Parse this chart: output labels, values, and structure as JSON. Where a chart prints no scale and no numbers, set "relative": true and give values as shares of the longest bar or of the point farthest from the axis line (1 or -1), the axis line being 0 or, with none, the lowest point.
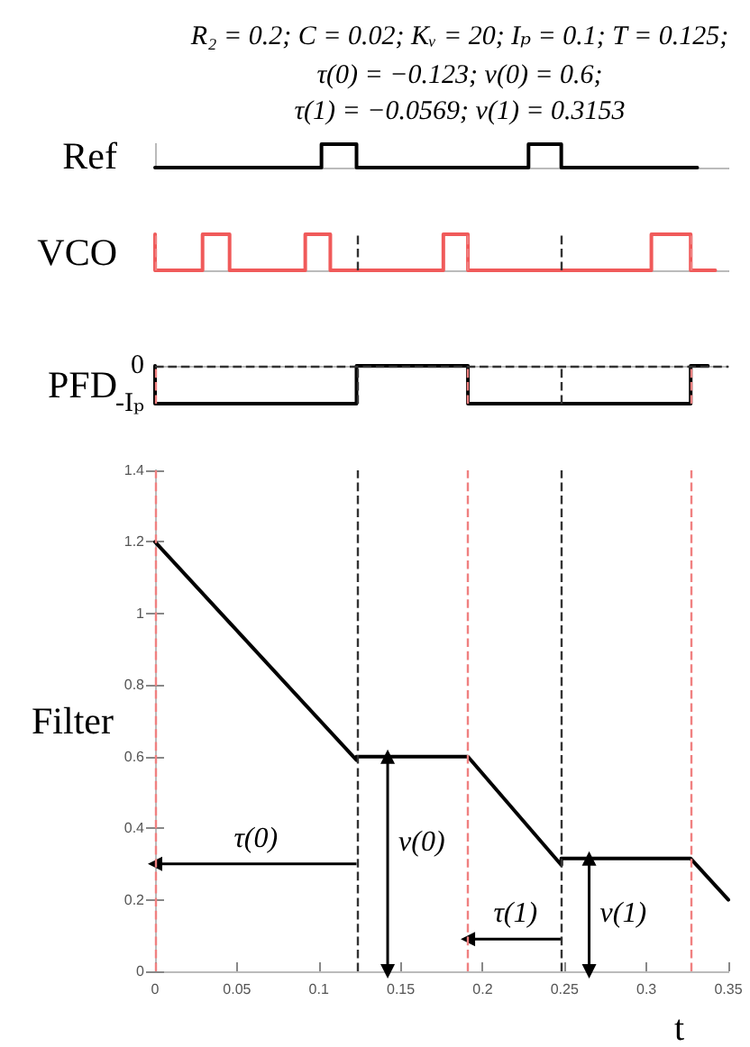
{
  "chart_data": [
    {
      "type": "step",
      "title": "R₂ = 0.2; C = 0.02; Kᵥ = 20; Iₚ = 0.1; T = 0.125;",
      "subtitle": "τ(0) = −0.123; v(0) = 0.6;\nτ(1) = −0.0569; v(1) = 0.3153",
      "ylabel": "Ref",
      "relative": true,
      "xlim": [
        0,
        0.35
      ],
      "x": [
        0,
        0.1016,
        0.123,
        0.228,
        0.248,
        0.331
      ],
      "values": [
        0,
        1,
        0,
        1,
        0,
        0
      ],
      "color": "#000000"
    },
    {
      "type": "step",
      "ylabel": "VCO",
      "relative": true,
      "xlim": [
        0,
        0.35
      ],
      "x": [
        0,
        0,
        0.029,
        0.0455,
        0.0917,
        0.107,
        0.176,
        0.191,
        0.303,
        0.327,
        0.342
      ],
      "values": [
        1,
        0,
        1,
        0,
        1,
        0,
        1,
        0,
        1,
        0,
        0
      ],
      "color": "#f05a5a",
      "ref_lines": [
        {
          "axis": "x",
          "value": 0,
          "color": "#f08080",
          "line_style": "dashed"
        },
        {
          "axis": "x",
          "value": 0.123,
          "color": "#333333",
          "line_style": "dashed"
        },
        {
          "axis": "x",
          "value": 0.191,
          "color": "#f08080",
          "line_style": "dashed"
        },
        {
          "axis": "x",
          "value": 0.248,
          "color": "#333333",
          "line_style": "dashed"
        },
        {
          "axis": "x",
          "value": 0.327,
          "color": "#f08080",
          "line_style": "dashed"
        }
      ]
    },
    {
      "type": "step",
      "ylabel": "PFD",
      "relative": true,
      "annotations": [
        "0",
        "-Iₚ"
      ],
      "xlim": [
        0,
        0.35
      ],
      "x": [
        0,
        0,
        0.123,
        0.191,
        0.327,
        0.3375
      ],
      "values": [
        0,
        -1,
        0,
        -1,
        0,
        0
      ],
      "color": "#000000",
      "ref_lines": [
        {
          "axis": "y",
          "value": 0,
          "color": "#333333",
          "line_style": "dashed"
        },
        {
          "axis": "x",
          "value": 0,
          "color": "#f08080",
          "line_style": "dashed"
        },
        {
          "axis": "x",
          "value": 0.123,
          "color": "#333333",
          "line_style": "dashed"
        },
        {
          "axis": "x",
          "value": 0.191,
          "color": "#f08080",
          "line_style": "dashed"
        },
        {
          "axis": "x",
          "value": 0.248,
          "color": "#333333",
          "line_style": "dashed"
        },
        {
          "axis": "x",
          "value": 0.327,
          "color": "#f08080",
          "line_style": "dashed"
        }
      ]
    },
    {
      "type": "line",
      "ylabel": "Filter",
      "xlabel": "t",
      "xlim": [
        0,
        0.35
      ],
      "ylim": [
        0,
        1.4
      ],
      "xticks": [
        0,
        0.05,
        0.1,
        0.15,
        0.2,
        0.25,
        0.3,
        0.35
      ],
      "yticks": [
        0,
        0.2,
        0.4,
        0.6,
        0.8,
        1,
        1.2,
        1.4
      ],
      "series": [
        {
          "color": "#000000",
          "x": [
            0,
            0.123,
            0.123,
            0.191,
            0.248,
            0.248,
            0.327,
            0.35
          ],
          "values": [
            1.2,
            0.59,
            0.6,
            0.6,
            0.297,
            0.3153,
            0.3153,
            0.2
          ]
        },
        {
          "color": "#000000",
          "marker": "triangle",
          "x": [
            0.123,
            0
          ],
          "values": [
            0.3,
            0.3
          ]
        },
        {
          "color": "#000000",
          "marker": "triangle",
          "x": [
            0.142,
            0.142
          ],
          "values": [
            0,
            0.6
          ]
        },
        {
          "color": "#000000",
          "marker": "triangle",
          "x": [
            0.248,
            0.191
          ],
          "values": [
            0.09,
            0.09
          ]
        },
        {
          "color": "#000000",
          "marker": "triangle",
          "x": [
            0.265,
            0.265
          ],
          "values": [
            0,
            0.3153
          ]
        }
      ],
      "annotations": [
        {
          "text": "τ(0)",
          "x": 0.0615,
          "y": 0.3
        },
        {
          "text": "v(0)",
          "x": 0.142,
          "y": 0.36
        },
        {
          "text": "τ(1)",
          "x": 0.22,
          "y": 0.09
        },
        {
          "text": "v(1)",
          "x": 0.265,
          "y": 0.16
        }
      ],
      "ref_lines": [
        {
          "axis": "x",
          "value": 0,
          "color": "#f08080",
          "line_style": "dashed"
        },
        {
          "axis": "x",
          "value": 0.123,
          "color": "#333333",
          "line_style": "dashed"
        },
        {
          "axis": "x",
          "value": 0.191,
          "color": "#f08080",
          "line_style": "dashed"
        },
        {
          "axis": "x",
          "value": 0.248,
          "color": "#333333",
          "line_style": "dashed"
        },
        {
          "axis": "x",
          "value": 0.327,
          "color": "#f08080",
          "line_style": "dashed"
        }
      ]
    }
  ]
}
